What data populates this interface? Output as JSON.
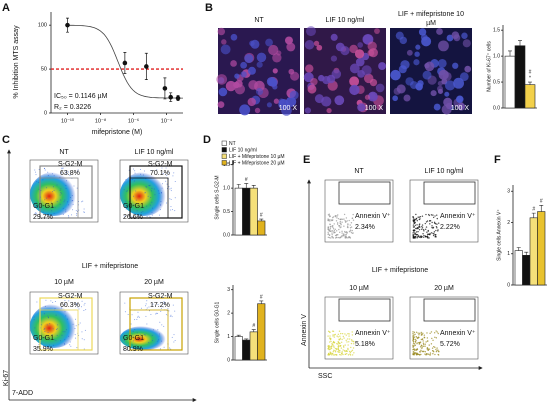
{
  "a": {
    "label": "A",
    "type": "scatter",
    "xscale": "log",
    "ylabel": "% Inhibition MTS assay",
    "xlabel": "mifepristone (M)",
    "x": [
      1e-10,
      3e-07,
      6e-06,
      8e-05,
      0.00018,
      0.0005
    ],
    "values": [
      100,
      57,
      53,
      28,
      18,
      17
    ],
    "errors": [
      8,
      12,
      15,
      12,
      5,
      3
    ],
    "xlim": [
      1e-11,
      0.001
    ],
    "ylim": [
      0,
      115
    ],
    "xticks": [
      {
        "value": 1e-10,
        "label": "10⁻¹⁰"
      },
      {
        "value": 1e-08,
        "label": "10⁻⁸"
      },
      {
        "value": 1e-06,
        "label": "10⁻⁶"
      },
      {
        "value": 0.0001,
        "label": "10⁻⁴"
      }
    ],
    "yticks": [
      0,
      50,
      100
    ],
    "threshold": 50,
    "threshold_color": "#e02020",
    "color": "#111111",
    "ic50": 1.146e-07,
    "ic50_text": "IC₅₀ = 0.1146 µM",
    "r2_text": "R₂ = 0.3226"
  },
  "b": {
    "label": "B",
    "images": [
      {
        "title": [
          "NT"
        ],
        "mag": "100 X"
      },
      {
        "title": [
          "LIF 10 ng/ml"
        ],
        "mag": "100 X"
      },
      {
        "title": [
          "LIF + mifepristone 10",
          "µM"
        ],
        "mag": "100 X"
      }
    ],
    "chart": {
      "type": "bar",
      "ylabel": "Number of Ki-67⁺ cells",
      "values": [
        1.0,
        1.2,
        0.45
      ],
      "errors": [
        0.1,
        0.1,
        0.05
      ],
      "colors": [
        "#ffffff",
        "#111111",
        "#f2d04a"
      ],
      "ylim": [
        0,
        1.6
      ],
      "yticks": [
        {
          "value": 0,
          "label": "0.0"
        },
        {
          "value": 0.5,
          "label": "0.5"
        },
        {
          "value": 1,
          "label": "1.0"
        },
        {
          "value": 1.5,
          "label": "1.5"
        }
      ],
      "annotations": [
        {
          "bar": 2,
          "text": "*"
        },
        {
          "bar": 2,
          "text": "#"
        }
      ]
    }
  },
  "c": {
    "label": "C",
    "yaxis": "Ki-67",
    "xaxis": "7-ADD",
    "group_title": "LIF + mifepristone",
    "plots": [
      {
        "title": "NT",
        "upper": "S-G2-M",
        "upper_pct": "63.8%",
        "lower": "G0-G1",
        "lower_pct": "29.7%",
        "gate_color": "#888888"
      },
      {
        "title": "LIF 10 ng/ml",
        "upper": "S-G2-M",
        "upper_pct": "70.1%",
        "lower": "G0-G1",
        "lower_pct": "26.6%",
        "gate_color": "#111111"
      },
      {
        "title": "10 µM",
        "upper": "S-G2-M",
        "upper_pct": "60.3%",
        "lower": "G0-G1",
        "lower_pct": "35.9%",
        "gate_color": "#ecd85a"
      },
      {
        "title": "20 µM",
        "upper": "S-G2-M",
        "upper_pct": "17.2%",
        "lower": "G0-G1",
        "lower_pct": "80.9%",
        "gate_color": "#c9a200"
      }
    ]
  },
  "d": {
    "label": "D",
    "series": [
      {
        "name": "NT",
        "color": "#ffffff"
      },
      {
        "name": "LIF 10 ng/ml",
        "color": "#111111"
      },
      {
        "name": "LIF + Mifepristone 10 µM",
        "color": "#f5e07a"
      },
      {
        "name": "LIF + Mifepristone 20 µM",
        "color": "#e0b21e"
      }
    ],
    "charts": [
      {
        "type": "bar",
        "ylabel": "Single cells S-G2-M",
        "values": [
          1.0,
          1.0,
          1.0,
          0.3
        ],
        "errors": [
          0.08,
          0.1,
          0.06,
          0.04
        ],
        "ylim": [
          0,
          1.6
        ],
        "yticks": [
          {
            "value": 0,
            "label": "0.0"
          },
          {
            "value": 0.5,
            "label": "0.5"
          },
          {
            "value": 1,
            "label": "1.0"
          },
          {
            "value": 1.5,
            "label": "1.5"
          }
        ],
        "annotations": [
          {
            "bar": 1,
            "text": "#"
          },
          {
            "bar": 3,
            "text": "#"
          }
        ]
      },
      {
        "type": "bar",
        "ylabel": "Single cells G0-G1",
        "values": [
          1.0,
          0.85,
          1.2,
          2.4
        ],
        "errors": [
          0.06,
          0.05,
          0.1,
          0.12
        ],
        "ylim": [
          0,
          3.2
        ],
        "yticks": [
          0,
          1,
          2,
          3
        ],
        "annotations": [
          {
            "bar": 2,
            "text": "#"
          },
          {
            "bar": 3,
            "text": "#"
          }
        ]
      }
    ]
  },
  "e": {
    "label": "E",
    "yaxis": "Annexin V",
    "xaxis": "SSC",
    "group_title": "LIF + mifepristone",
    "plots": [
      {
        "title": "NT",
        "gate": "Annexin V⁺",
        "pct": "2.34%",
        "cloud": "#9a9a9a"
      },
      {
        "title": "LIF 10 ng/ml",
        "gate": "Annexin V⁺",
        "pct": "2.22%",
        "cloud": "#111111"
      },
      {
        "title": "10 µM",
        "gate": "Annexin V⁺",
        "pct": "5.18%",
        "cloud": "#d8d640"
      },
      {
        "title": "20 µM",
        "gate": "Annexin V⁺",
        "pct": "5.72%",
        "cloud": "#9a8a20"
      }
    ]
  },
  "f": {
    "label": "F",
    "chart": {
      "type": "bar",
      "ylabel": "Single cells Annexin V⁺",
      "values": [
        1.1,
        0.95,
        2.15,
        2.35
      ],
      "errors": [
        0.1,
        0.1,
        0.15,
        0.2
      ],
      "colors": [
        "#ffffff",
        "#111111",
        "#f5e07a",
        "#e8c22e"
      ],
      "ylim": [
        0,
        3.2
      ],
      "yticks": [
        0,
        1,
        2,
        3
      ],
      "annotations": [
        {
          "bar": 2,
          "text": "#"
        },
        {
          "bar": 3,
          "text": "#"
        }
      ]
    }
  }
}
